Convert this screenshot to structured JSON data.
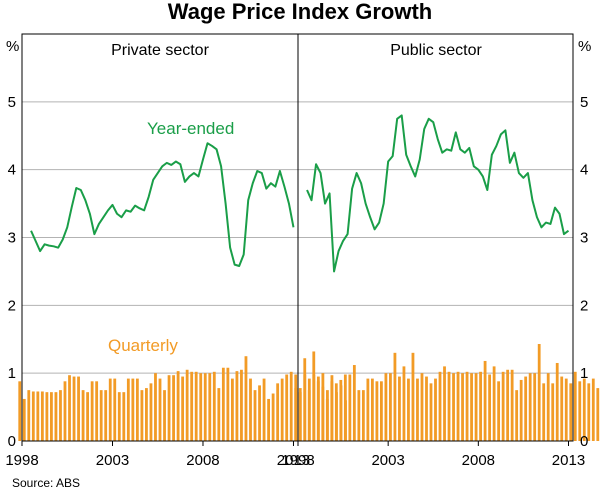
{
  "title": "Wage Price Index Growth",
  "source": "Source: ABS",
  "colors": {
    "year_ended": "#1a9e48",
    "quarterly": "#f29b26",
    "grid": "#b3b3b3",
    "axis": "#000000"
  },
  "chart_data": {
    "type": "line",
    "unit": "%",
    "ylim": [
      0,
      6
    ],
    "yticks": [
      0,
      1,
      2,
      3,
      4,
      5
    ],
    "grid": true,
    "annotations": {
      "year_ended": "Year-ended",
      "quarterly": "Quarterly"
    },
    "xlim": [
      1998.0,
      2013.25
    ],
    "xticks": [
      1998,
      2003,
      2008,
      2013
    ],
    "panels": [
      {
        "title": "Private sector",
        "series": [
          {
            "name": "Year-ended",
            "type": "line",
            "x": [
              1998.5,
              1998.75,
              1999.0,
              1999.25,
              1999.5,
              1999.75,
              2000.0,
              2000.25,
              2000.5,
              2000.75,
              2001.0,
              2001.25,
              2001.5,
              2001.75,
              2002.0,
              2002.25,
              2002.5,
              2002.75,
              2003.0,
              2003.25,
              2003.5,
              2003.75,
              2004.0,
              2004.25,
              2004.5,
              2004.75,
              2005.0,
              2005.25,
              2005.5,
              2005.75,
              2006.0,
              2006.25,
              2006.5,
              2006.75,
              2007.0,
              2007.25,
              2007.5,
              2007.75,
              2008.0,
              2008.25,
              2008.5,
              2008.75,
              2009.0,
              2009.25,
              2009.5,
              2009.75,
              2010.0,
              2010.25,
              2010.5,
              2010.75,
              2011.0,
              2011.25,
              2011.5,
              2011.75,
              2012.0,
              2012.25,
              2012.5,
              2012.75,
              2013.0
            ],
            "y": [
              3.1,
              2.95,
              2.8,
              2.9,
              2.88,
              2.87,
              2.85,
              2.97,
              3.15,
              3.45,
              3.73,
              3.7,
              3.55,
              3.35,
              3.05,
              3.2,
              3.3,
              3.4,
              3.48,
              3.35,
              3.3,
              3.4,
              3.38,
              3.47,
              3.43,
              3.4,
              3.6,
              3.85,
              3.95,
              4.05,
              4.1,
              4.07,
              4.12,
              4.08,
              3.82,
              3.9,
              3.95,
              3.9,
              4.15,
              4.39,
              4.35,
              4.3,
              4.05,
              3.5,
              2.85,
              2.6,
              2.58,
              2.75,
              3.55,
              3.8,
              3.98,
              3.95,
              3.72,
              3.8,
              3.75,
              3.98,
              3.75,
              3.5,
              3.15
            ]
          },
          {
            "name": "Quarterly",
            "type": "bar",
            "x_start": 1997.875,
            "step": 0.25,
            "values": [
              0.88,
              0.62,
              0.75,
              0.73,
              0.73,
              0.73,
              0.72,
              0.72,
              0.72,
              0.75,
              0.88,
              0.97,
              0.95,
              0.95,
              0.75,
              0.72,
              0.88,
              0.88,
              0.75,
              0.75,
              0.92,
              0.92,
              0.72,
              0.72,
              0.92,
              0.92,
              0.92,
              0.75,
              0.78,
              0.85,
              1.0,
              0.92,
              0.75,
              0.97,
              0.97,
              1.03,
              0.95,
              1.05,
              1.02,
              1.02,
              1.0,
              1.0,
              1.0,
              1.02,
              0.78,
              1.08,
              1.08,
              0.92,
              1.03,
              1.05,
              1.25,
              0.92,
              0.75,
              0.82,
              0.92,
              0.62,
              0.7,
              0.85,
              0.92,
              0.98,
              1.02,
              0.98,
              0.72,
              0.98,
              0.92,
              0.98,
              0.95,
              1.0,
              0.75,
              0.97,
              0.72,
              0.82,
              0.6
            ]
          }
        ]
      },
      {
        "title": "Public sector",
        "series": [
          {
            "name": "Year-ended",
            "type": "line",
            "x": [
              1998.5,
              1998.75,
              1999.0,
              1999.25,
              1999.5,
              1999.75,
              2000.0,
              2000.25,
              2000.5,
              2000.75,
              2001.0,
              2001.25,
              2001.5,
              2001.75,
              2002.0,
              2002.25,
              2002.5,
              2002.75,
              2003.0,
              2003.25,
              2003.5,
              2003.75,
              2004.0,
              2004.25,
              2004.5,
              2004.75,
              2005.0,
              2005.25,
              2005.5,
              2005.75,
              2006.0,
              2006.25,
              2006.5,
              2006.75,
              2007.0,
              2007.25,
              2007.5,
              2007.75,
              2008.0,
              2008.25,
              2008.5,
              2008.75,
              2009.0,
              2009.25,
              2009.5,
              2009.75,
              2010.0,
              2010.25,
              2010.5,
              2010.75,
              2011.0,
              2011.25,
              2011.5,
              2011.75,
              2012.0,
              2012.25,
              2012.5,
              2012.75,
              2013.0
            ],
            "y": [
              3.7,
              3.55,
              4.08,
              3.95,
              3.5,
              3.65,
              2.5,
              2.8,
              2.95,
              3.05,
              3.72,
              3.95,
              3.8,
              3.5,
              3.3,
              3.12,
              3.22,
              3.5,
              4.12,
              4.2,
              4.75,
              4.8,
              4.22,
              4.05,
              3.9,
              4.15,
              4.6,
              4.75,
              4.7,
              4.45,
              4.25,
              4.3,
              4.28,
              4.55,
              4.3,
              4.25,
              4.32,
              4.05,
              4.0,
              3.9,
              3.7,
              4.22,
              4.35,
              4.52,
              4.58,
              4.1,
              4.25,
              3.95,
              3.88,
              3.95,
              3.55,
              3.3,
              3.15,
              3.22,
              3.2,
              3.44,
              3.35,
              3.05,
              3.1
            ]
          },
          {
            "name": "Quarterly",
            "type": "bar",
            "x_start": 1997.875,
            "step": 0.25,
            "values": [
              0.78,
              0.78,
              1.22,
              0.75,
              1.32,
              0.88,
              0.8,
              0.62,
              0.88,
              0.85,
              0.9,
              0.98,
              0.98,
              1.12,
              0.75,
              0.75,
              0.92,
              0.92,
              0.88,
              0.88,
              1.0,
              1.0,
              1.3,
              0.95,
              1.1,
              0.92,
              1.3,
              0.92,
              1.0,
              0.95,
              0.85,
              0.92,
              1.02,
              1.1,
              1.02,
              1.0,
              1.02,
              1.0,
              1.02,
              1.0,
              1.0,
              1.02,
              1.18,
              0.98,
              1.1,
              0.88,
              1.02,
              1.05,
              1.05,
              0.75,
              0.9,
              0.95,
              1.0,
              1.0,
              1.43,
              0.85,
              1.0,
              0.85,
              1.15,
              0.95,
              0.92,
              0.85,
              1.02,
              0.88,
              0.92,
              0.85,
              0.92,
              0.78,
              0.92,
              0.92,
              0.78,
              0.7,
              0.6
            ]
          }
        ]
      }
    ]
  }
}
